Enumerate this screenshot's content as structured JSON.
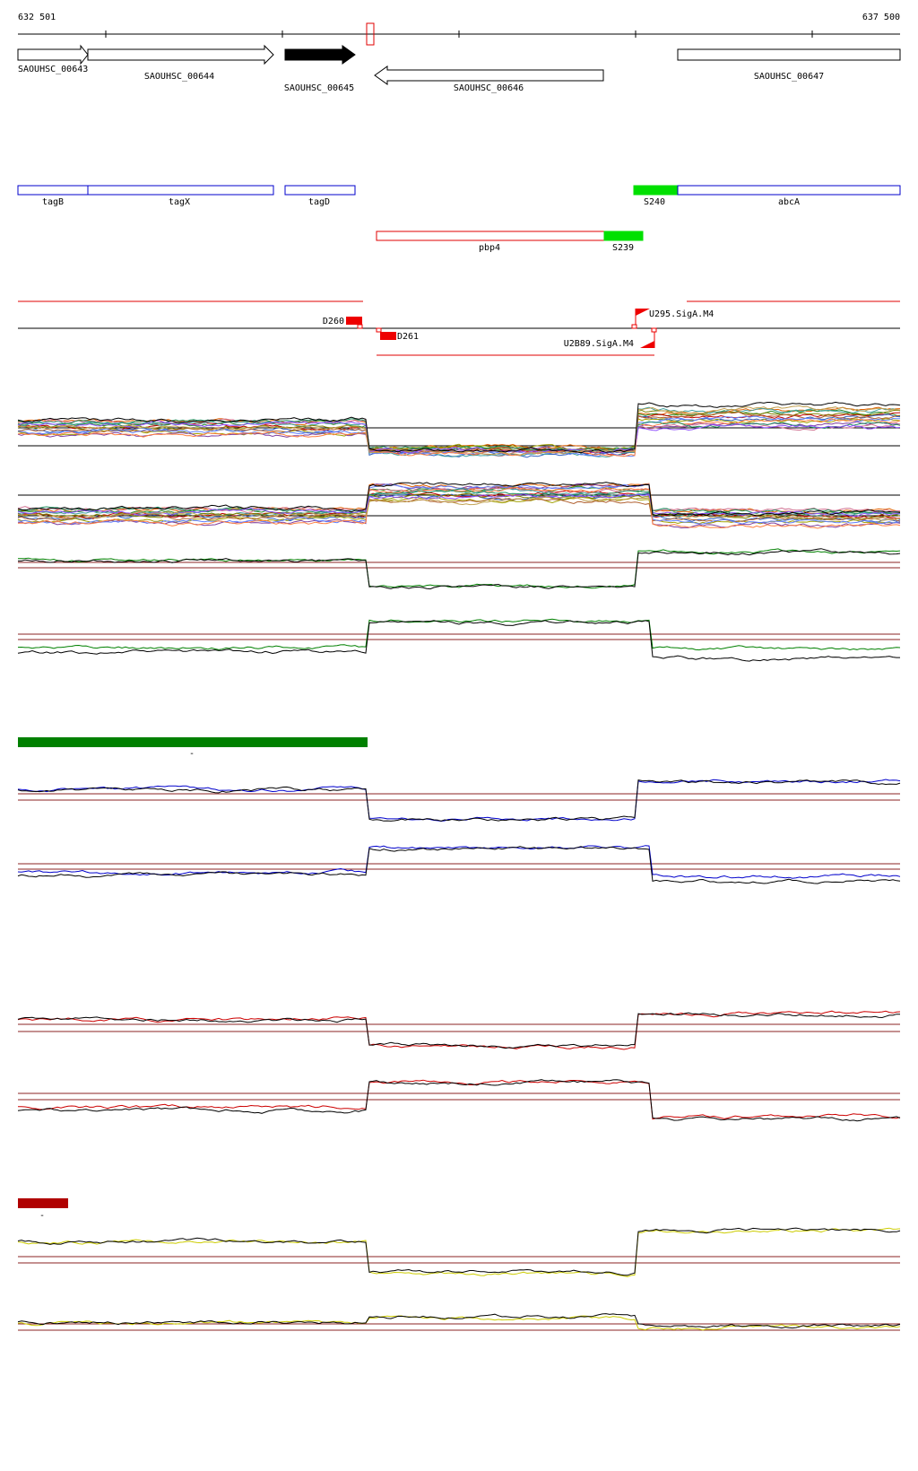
{
  "ruler": {
    "start_label": "632 501",
    "end_label": "637 500",
    "range_bp": [
      632501,
      637500
    ]
  },
  "colors": {
    "axis": "#000000",
    "gene_outline": "#000000",
    "annotation_outline": "#0000cc",
    "pbp4_outline": "#e00000",
    "segment_green": "#00e000",
    "segment_red": "#ee0000",
    "threshold_line": "#8b2323",
    "bar_green": "#008000",
    "bar_darkred": "#b00000",
    "series_green": "#008000",
    "series_blue": "#0000cc",
    "series_red": "#cc0000",
    "series_yellow": "#cccc00"
  },
  "genes": [
    {
      "label": "SAOUHSC_00643",
      "start": 632501,
      "end": 633300,
      "strand": "+",
      "filled": false
    },
    {
      "label": "SAOUHSC_00644",
      "start": 633300,
      "end": 635300,
      "strand": "+",
      "filled": false
    },
    {
      "label": "SAOUHSC_00645",
      "start": 635430,
      "end": 636250,
      "strand": "+",
      "filled": true
    },
    {
      "label": "SAOUHSC_00646",
      "start": 636480,
      "end": 639200,
      "strand": "-",
      "filled": false
    },
    {
      "label": "SAOUHSC_00647",
      "start": 640000,
      "end": 642500,
      "strand": "+",
      "filled": false
    }
  ],
  "annotations": [
    {
      "label": "tagB",
      "start": 632501,
      "end": 633300
    },
    {
      "label": "tagX",
      "start": 633300,
      "end": 635300
    },
    {
      "label": "tagD",
      "start": 635430,
      "end": 636250
    },
    {
      "label": "S240",
      "start": 639300,
      "end": 639800,
      "fill": "green"
    },
    {
      "label": "abcA",
      "start": 639800,
      "end": 642500
    }
  ],
  "pbp4": [
    {
      "label": "pbp4",
      "start": 636480,
      "end": 639100
    },
    {
      "label": "S239",
      "start": 639100,
      "end": 639550,
      "fill": "green"
    }
  ],
  "regulatory": [
    {
      "label": "D260"
    },
    {
      "label": "D261"
    },
    {
      "label": "U295.SigA.M4"
    },
    {
      "label": "U2B89.SigA.M4"
    }
  ],
  "misc_labels": {
    "dash_1": "-",
    "dash_2": "-"
  }
}
